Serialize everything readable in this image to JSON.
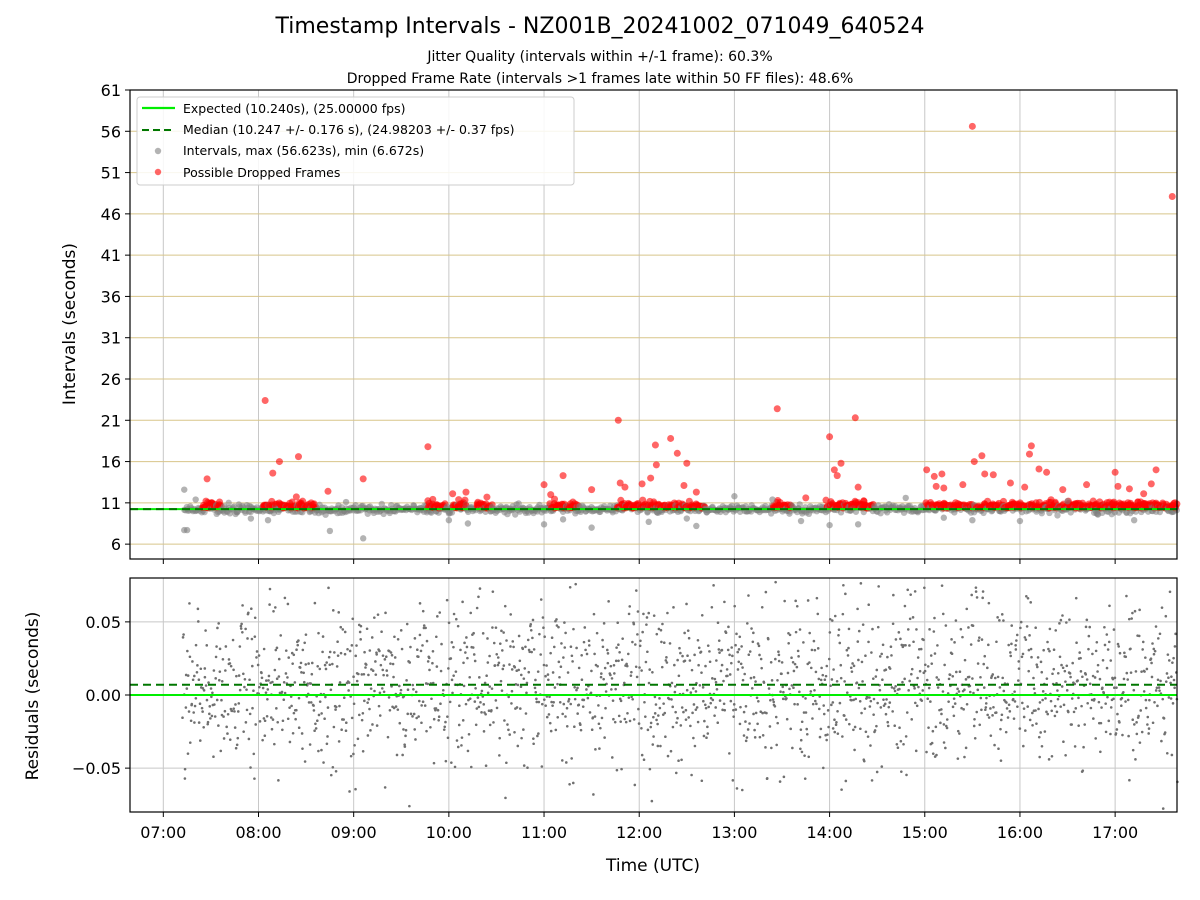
{
  "header": {
    "title": "Timestamp Intervals - NZ001B_20241002_071049_640524",
    "jitter_quality": "Jitter Quality (intervals within +/-1 frame): 60.3%",
    "dropped_rate": "Dropped Frame Rate (intervals >1 frames late within 50 FF files): 48.6%"
  },
  "chart_data": [
    {
      "type": "scatter",
      "panel": "intervals",
      "ylabel": "Intervals (seconds)",
      "xlabel": "",
      "ylim": [
        4.2,
        61
      ],
      "xlim_hours": [
        6.65,
        17.65
      ],
      "y_ticks": [
        "6",
        "11",
        "16",
        "21",
        "26",
        "31",
        "36",
        "41",
        "46",
        "51",
        "56",
        "61"
      ],
      "y_tick_values": [
        6,
        11,
        16,
        21,
        26,
        31,
        36,
        41,
        46,
        51,
        56,
        61
      ],
      "x_grid_hours": [
        7,
        8,
        9,
        10,
        11,
        12,
        13,
        14,
        15,
        16,
        17
      ],
      "grid": true,
      "legend_position": "upper-left",
      "colors": {
        "expected": "#00ee00",
        "median": "#007700",
        "intervals": "#808080",
        "dropped": "#ff0000",
        "hgrid": "#d8c58a",
        "vgrid": "#c8c8c8"
      },
      "series": [
        {
          "name": "Expected (10.240s), (25.00000 fps)",
          "kind": "hline",
          "value": 10.24
        },
        {
          "name": "Median (10.247 +/- 0.176 s), (24.98203 +/- 0.37 fps)",
          "kind": "hline-dashed",
          "value": 10.247
        },
        {
          "name": "Intervals, max (56.623s), min (6.672s)",
          "kind": "points",
          "outliers": [
            {
              "t": 7.22,
              "y": 12.6
            },
            {
              "t": 7.22,
              "y": 7.7
            },
            {
              "t": 7.25,
              "y": 7.7
            },
            {
              "t": 7.34,
              "y": 11.4
            },
            {
              "t": 7.92,
              "y": 9.1
            },
            {
              "t": 8.1,
              "y": 8.9
            },
            {
              "t": 8.75,
              "y": 7.6
            },
            {
              "t": 8.92,
              "y": 11.1
            },
            {
              "t": 9.1,
              "y": 6.7
            },
            {
              "t": 10.0,
              "y": 8.9
            },
            {
              "t": 10.2,
              "y": 8.5
            },
            {
              "t": 11.0,
              "y": 8.4
            },
            {
              "t": 11.2,
              "y": 9.0
            },
            {
              "t": 11.5,
              "y": 8.0
            },
            {
              "t": 12.1,
              "y": 8.7
            },
            {
              "t": 12.5,
              "y": 9.1
            },
            {
              "t": 12.6,
              "y": 8.2
            },
            {
              "t": 13.0,
              "y": 11.8
            },
            {
              "t": 13.4,
              "y": 11.4
            },
            {
              "t": 13.7,
              "y": 8.8
            },
            {
              "t": 14.0,
              "y": 8.3
            },
            {
              "t": 14.3,
              "y": 8.4
            },
            {
              "t": 14.8,
              "y": 11.6
            },
            {
              "t": 15.2,
              "y": 9.2
            },
            {
              "t": 15.5,
              "y": 8.9
            },
            {
              "t": 16.0,
              "y": 8.8
            },
            {
              "t": 16.5,
              "y": 11.2
            },
            {
              "t": 17.2,
              "y": 8.9
            }
          ]
        },
        {
          "name": "Possible Dropped Frames",
          "kind": "points",
          "outliers": [
            {
              "t": 7.46,
              "y": 13.9
            },
            {
              "t": 8.07,
              "y": 23.4
            },
            {
              "t": 8.15,
              "y": 14.6
            },
            {
              "t": 8.22,
              "y": 16.0
            },
            {
              "t": 8.42,
              "y": 16.6
            },
            {
              "t": 8.73,
              "y": 12.4
            },
            {
              "t": 9.1,
              "y": 13.9
            },
            {
              "t": 9.78,
              "y": 17.8
            },
            {
              "t": 10.04,
              "y": 12.1
            },
            {
              "t": 10.18,
              "y": 12.3
            },
            {
              "t": 10.4,
              "y": 11.7
            },
            {
              "t": 11.0,
              "y": 13.2
            },
            {
              "t": 11.07,
              "y": 12.0
            },
            {
              "t": 11.2,
              "y": 14.3
            },
            {
              "t": 11.5,
              "y": 12.6
            },
            {
              "t": 11.78,
              "y": 21.0
            },
            {
              "t": 11.8,
              "y": 13.4
            },
            {
              "t": 11.85,
              "y": 12.9
            },
            {
              "t": 12.03,
              "y": 13.3
            },
            {
              "t": 12.12,
              "y": 14.0
            },
            {
              "t": 12.17,
              "y": 18.0
            },
            {
              "t": 12.18,
              "y": 15.6
            },
            {
              "t": 12.33,
              "y": 18.8
            },
            {
              "t": 12.4,
              "y": 17.0
            },
            {
              "t": 12.47,
              "y": 13.1
            },
            {
              "t": 12.5,
              "y": 15.8
            },
            {
              "t": 12.6,
              "y": 12.3
            },
            {
              "t": 13.45,
              "y": 22.4
            },
            {
              "t": 13.75,
              "y": 11.6
            },
            {
              "t": 14.0,
              "y": 19.0
            },
            {
              "t": 14.05,
              "y": 15.0
            },
            {
              "t": 14.08,
              "y": 14.3
            },
            {
              "t": 14.12,
              "y": 15.8
            },
            {
              "t": 14.27,
              "y": 21.3
            },
            {
              "t": 14.3,
              "y": 12.9
            },
            {
              "t": 15.02,
              "y": 15.0
            },
            {
              "t": 15.1,
              "y": 14.2
            },
            {
              "t": 15.12,
              "y": 13.0
            },
            {
              "t": 15.18,
              "y": 14.5
            },
            {
              "t": 15.2,
              "y": 12.8
            },
            {
              "t": 15.4,
              "y": 13.2
            },
            {
              "t": 15.5,
              "y": 56.6
            },
            {
              "t": 15.52,
              "y": 16.0
            },
            {
              "t": 15.6,
              "y": 16.7
            },
            {
              "t": 15.63,
              "y": 14.5
            },
            {
              "t": 15.72,
              "y": 14.4
            },
            {
              "t": 15.9,
              "y": 13.4
            },
            {
              "t": 16.05,
              "y": 12.9
            },
            {
              "t": 16.1,
              "y": 16.9
            },
            {
              "t": 16.12,
              "y": 17.9
            },
            {
              "t": 16.2,
              "y": 15.1
            },
            {
              "t": 16.28,
              "y": 14.7
            },
            {
              "t": 16.45,
              "y": 12.6
            },
            {
              "t": 16.7,
              "y": 13.2
            },
            {
              "t": 17.0,
              "y": 14.7
            },
            {
              "t": 17.03,
              "y": 13.0
            },
            {
              "t": 17.15,
              "y": 12.7
            },
            {
              "t": 17.3,
              "y": 12.1
            },
            {
              "t": 17.38,
              "y": 13.3
            },
            {
              "t": 17.43,
              "y": 15.0
            },
            {
              "t": 17.6,
              "y": 48.1
            }
          ]
        }
      ]
    },
    {
      "type": "scatter",
      "panel": "residuals",
      "ylabel": "Residuals (seconds)",
      "xlabel": "Time (UTC)",
      "ylim": [
        -0.08,
        0.08
      ],
      "y_ticks": [
        "0.05",
        "0.00",
        "−0.05"
      ],
      "y_tick_values": [
        0.05,
        0.0,
        -0.05
      ],
      "x_ticks": [
        "07:00",
        "08:00",
        "09:00",
        "10:00",
        "11:00",
        "12:00",
        "13:00",
        "14:00",
        "15:00",
        "16:00",
        "17:00"
      ],
      "x_tick_hours": [
        7,
        8,
        9,
        10,
        11,
        12,
        13,
        14,
        15,
        16,
        17
      ],
      "grid": true,
      "expected_residual": 0.0,
      "median_residual": 0.007,
      "residual_spread_sd": 0.028,
      "colors": {
        "points": "#707070",
        "expected": "#00ee00",
        "median": "#007700",
        "grid": "#c8c8c8"
      }
    }
  ],
  "legend": {
    "expected": "Expected (10.240s), (25.00000 fps)",
    "median": "Median (10.247 +/- 0.176 s), (24.98203 +/- 0.37 fps)",
    "intervals": "Intervals, max (56.623s), min (6.672s)",
    "dropped": "Possible Dropped Frames"
  }
}
